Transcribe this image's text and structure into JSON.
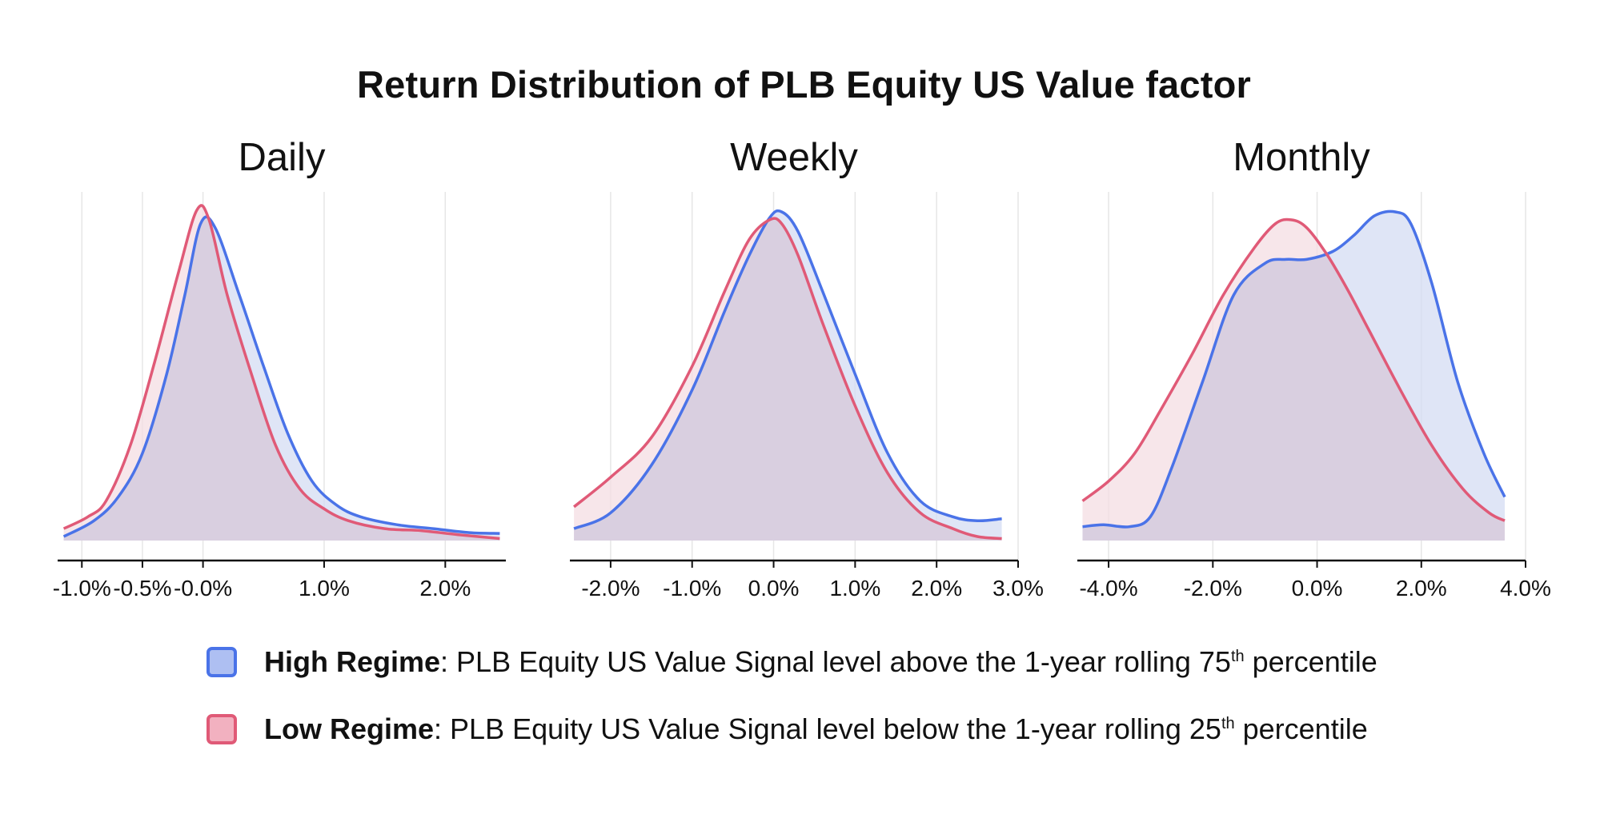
{
  "title": "Return Distribution of PLB Equity US Value factor",
  "colors": {
    "high": "#4a73e8",
    "low": "#e05a77",
    "high_fill": "#d4dcf3",
    "low_fill": "#f4dde3",
    "overlap_fill": "#d9cfe0"
  },
  "legend": {
    "high": {
      "name": "High Regime",
      "colon": ":",
      "text": " PLB Equity US Value Signal level above the 1-year rolling 75",
      "sup": "th",
      "tail": " percentile"
    },
    "low": {
      "name": "Low Regime",
      "colon": ":",
      "text": " PLB Equity US Value Signal level below the 1-year rolling 25",
      "sup": "th",
      "tail": " percentile"
    }
  },
  "chart_data": [
    {
      "type": "area",
      "title": "Daily",
      "xlim": [
        -1.2,
        2.5
      ],
      "xticks": [
        -1.0,
        -0.5,
        0.0,
        1.0,
        2.0
      ],
      "xtick_labels": [
        "-1.0%",
        "-0.5%",
        "-0.0%",
        "1.0%",
        "2.0%"
      ],
      "grid": true,
      "series": [
        {
          "name": "High Regime",
          "x": [
            -1.15,
            -0.9,
            -0.7,
            -0.5,
            -0.3,
            -0.15,
            -0.02,
            0.1,
            0.3,
            0.5,
            0.7,
            0.9,
            1.1,
            1.3,
            1.6,
            1.9,
            2.2,
            2.45
          ],
          "y": [
            0.01,
            0.05,
            0.11,
            0.22,
            0.42,
            0.62,
            0.8,
            0.79,
            0.62,
            0.44,
            0.27,
            0.15,
            0.09,
            0.06,
            0.04,
            0.03,
            0.02,
            0.018
          ]
        },
        {
          "name": "Low Regime",
          "x": [
            -1.15,
            -0.95,
            -0.8,
            -0.6,
            -0.4,
            -0.2,
            -0.05,
            0.05,
            0.2,
            0.4,
            0.6,
            0.8,
            1.0,
            1.2,
            1.5,
            1.8,
            2.1,
            2.45
          ],
          "y": [
            0.03,
            0.06,
            0.1,
            0.24,
            0.45,
            0.68,
            0.835,
            0.81,
            0.62,
            0.42,
            0.24,
            0.13,
            0.08,
            0.05,
            0.03,
            0.025,
            0.015,
            0.005
          ]
        }
      ]
    },
    {
      "type": "area",
      "title": "Weekly",
      "xlim": [
        -2.5,
        3.0
      ],
      "xticks": [
        -2.0,
        -1.0,
        0.0,
        1.0,
        2.0,
        3.0
      ],
      "xtick_labels": [
        "-2.0%",
        "-1.0%",
        "0.0%",
        "1.0%",
        "2.0%",
        "3.0%"
      ],
      "grid": true,
      "series": [
        {
          "name": "High Regime",
          "x": [
            -2.45,
            -2.0,
            -1.5,
            -1.0,
            -0.6,
            -0.3,
            -0.05,
            0.1,
            0.3,
            0.6,
            1.0,
            1.4,
            1.8,
            2.2,
            2.5,
            2.8
          ],
          "y": [
            0.03,
            0.07,
            0.19,
            0.38,
            0.58,
            0.72,
            0.815,
            0.83,
            0.78,
            0.63,
            0.42,
            0.22,
            0.1,
            0.06,
            0.05,
            0.055
          ]
        },
        {
          "name": "Low Regime",
          "x": [
            -2.45,
            -2.0,
            -1.5,
            -1.0,
            -0.6,
            -0.3,
            -0.05,
            0.1,
            0.3,
            0.6,
            1.0,
            1.4,
            1.8,
            2.2,
            2.5,
            2.8
          ],
          "y": [
            0.085,
            0.16,
            0.26,
            0.44,
            0.63,
            0.76,
            0.81,
            0.8,
            0.72,
            0.55,
            0.34,
            0.17,
            0.07,
            0.03,
            0.01,
            0.005
          ]
        }
      ]
    },
    {
      "type": "area",
      "title": "Monthly",
      "xlim": [
        -4.6,
        4.0
      ],
      "xticks": [
        -4.0,
        -2.0,
        0.0,
        2.0,
        4.0
      ],
      "xtick_labels": [
        "-4.0%",
        "-2.0%",
        "0.0%",
        "2.0%",
        "4.0%"
      ],
      "grid": true,
      "series": [
        {
          "name": "High Regime",
          "x": [
            -4.5,
            -4.1,
            -3.6,
            -3.2,
            -2.8,
            -2.2,
            -1.6,
            -1.0,
            -0.6,
            -0.2,
            0.3,
            0.7,
            1.1,
            1.5,
            1.8,
            2.2,
            2.7,
            3.2,
            3.6
          ],
          "y": [
            0.035,
            0.04,
            0.035,
            0.06,
            0.18,
            0.4,
            0.62,
            0.7,
            0.71,
            0.71,
            0.73,
            0.77,
            0.82,
            0.83,
            0.8,
            0.65,
            0.4,
            0.22,
            0.11
          ]
        },
        {
          "name": "Low Regime",
          "x": [
            -4.5,
            -4.0,
            -3.5,
            -3.0,
            -2.4,
            -1.8,
            -1.2,
            -0.8,
            -0.5,
            -0.2,
            0.2,
            0.6,
            1.0,
            1.6,
            2.2,
            2.8,
            3.3,
            3.6
          ],
          "y": [
            0.1,
            0.15,
            0.22,
            0.33,
            0.47,
            0.62,
            0.74,
            0.8,
            0.81,
            0.79,
            0.72,
            0.63,
            0.53,
            0.38,
            0.24,
            0.13,
            0.07,
            0.05
          ]
        }
      ]
    }
  ]
}
